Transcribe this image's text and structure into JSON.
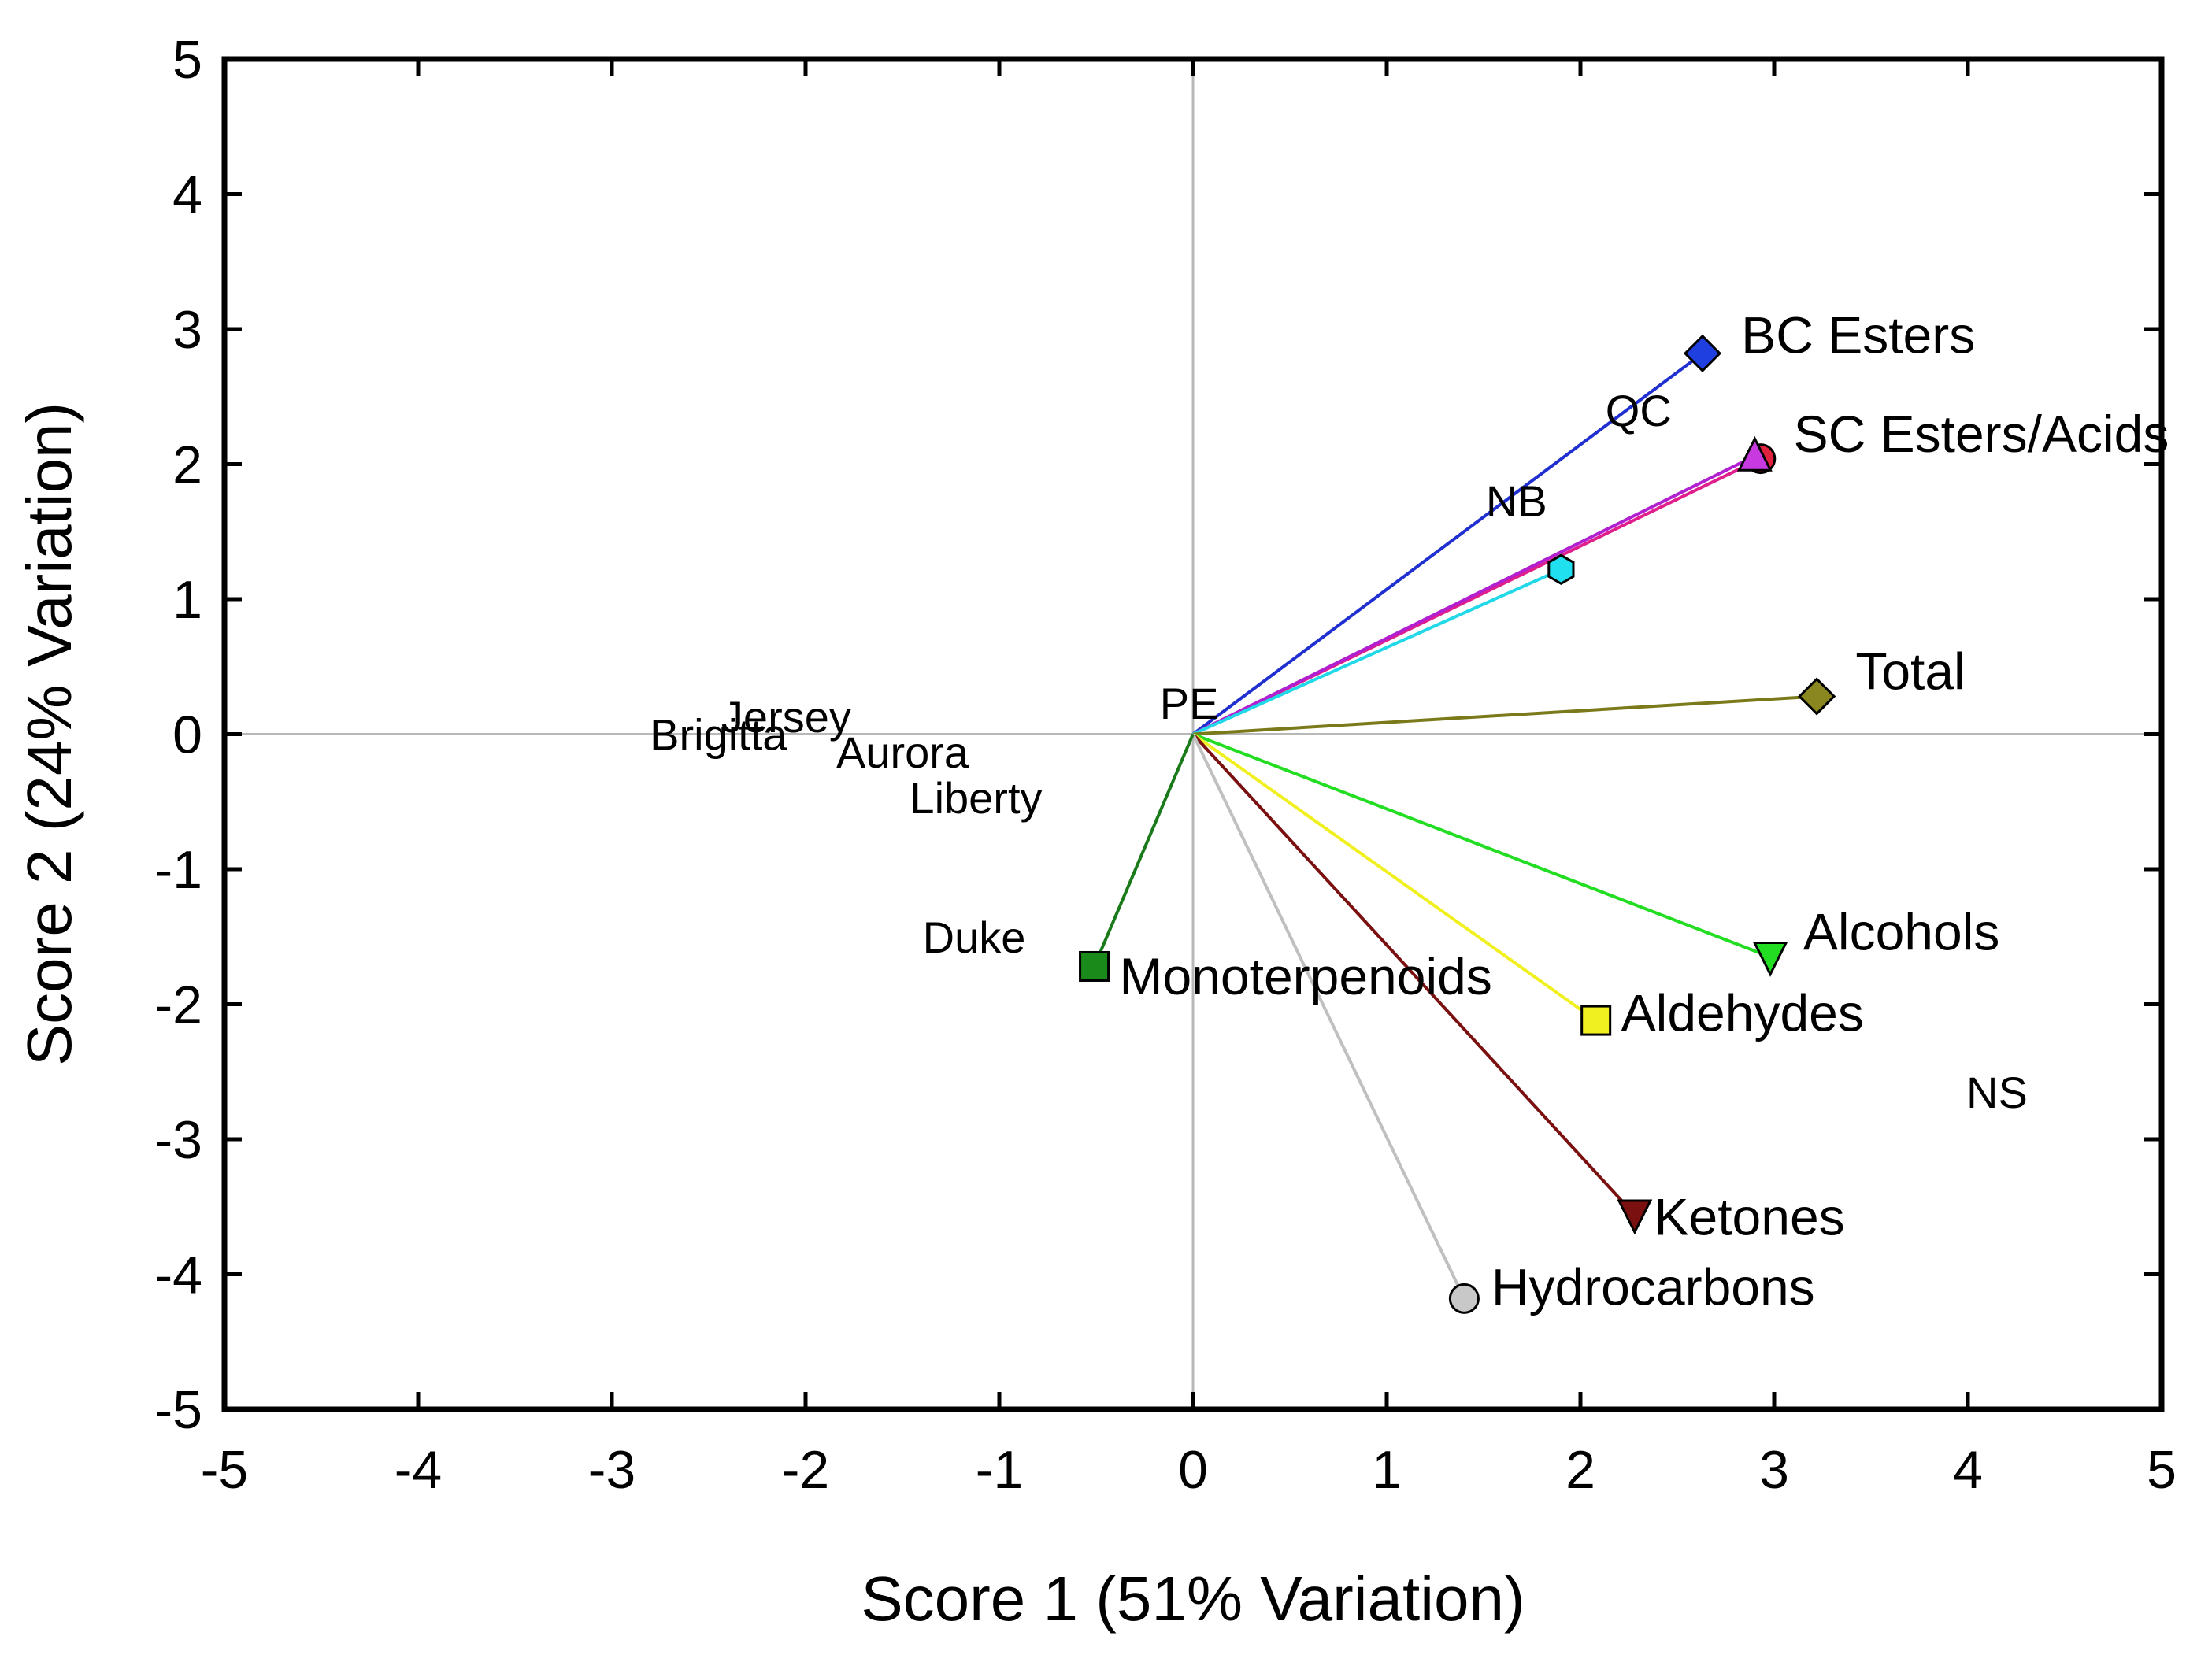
{
  "chart_data": {
    "type": "scatter",
    "subtype": "biplot",
    "title": "",
    "xlabel": "Score 1 (51% Variation)",
    "ylabel": "Score 2 (24% Variation)",
    "xlim": [
      -5,
      5
    ],
    "ylim": [
      -5,
      5
    ],
    "xticks": [
      "-5",
      "-4",
      "-3",
      "-2",
      "-1",
      "0",
      "1",
      "2",
      "3",
      "4",
      "5"
    ],
    "yticks": [
      "-5",
      "-4",
      "-3",
      "-2",
      "-1",
      "0",
      "1",
      "2",
      "3",
      "4",
      "5"
    ],
    "zero_lines": true,
    "vectors": [
      {
        "name": "BC Esters",
        "label": "BC Esters",
        "x": 2.63,
        "y": 2.82,
        "color": "#1f2fd0",
        "marker": "diamond",
        "marker_color": "#1f3fe0",
        "label_dx": 0.2,
        "label_dy": 0.13
      },
      {
        "name": "SC Esters/Acids",
        "label": "SC Esters/Acids",
        "x": 2.93,
        "y": 2.04,
        "color": "#e01e8c",
        "marker": "circle",
        "marker_color": "#e0223e",
        "label_dx": 0.17,
        "label_dy": 0.18
      },
      {
        "name": "SC Esters/Acids (triangle)",
        "label": "",
        "x": 2.9,
        "y": 2.06,
        "color": "#b020d0",
        "marker": "triangle-up",
        "marker_color": "#c83ae0",
        "label_dx": 0,
        "label_dy": 0
      },
      {
        "name": "Cyan",
        "label": "",
        "x": 1.9,
        "y": 1.22,
        "color": "#20d8e8",
        "marker": "hexagon",
        "marker_color": "#20e0f0",
        "label_dx": 0,
        "label_dy": 0
      },
      {
        "name": "Total",
        "label": "Total",
        "x": 3.22,
        "y": 0.28,
        "color": "#7a7a1a",
        "marker": "diamond",
        "marker_color": "#8a8620",
        "label_dx": 0.2,
        "label_dy": 0.18
      },
      {
        "name": "Alcohols",
        "label": "Alcohols",
        "x": 2.98,
        "y": -1.65,
        "color": "#22dd22",
        "marker": "triangle-down",
        "marker_color": "#22dd22",
        "label_dx": 0.17,
        "label_dy": 0.18
      },
      {
        "name": "Aldehydes",
        "label": "Aldehydes",
        "x": 2.08,
        "y": -2.12,
        "color": "#f0f020",
        "marker": "square",
        "marker_color": "#f0f020",
        "label_dx": 0.13,
        "label_dy": 0.05
      },
      {
        "name": "Ketones",
        "label": "Ketones",
        "x": 2.28,
        "y": -3.56,
        "color": "#7a1010",
        "marker": "triangle-down",
        "marker_color": "#7a1010",
        "label_dx": 0.1,
        "label_dy": -0.02
      },
      {
        "name": "Hydrocarbons",
        "label": "Hydrocarbons",
        "x": 1.4,
        "y": -4.18,
        "color": "#c0c0c0",
        "marker": "circle",
        "marker_color": "#c8c8c8",
        "label_dx": 0.14,
        "label_dy": 0.08
      },
      {
        "name": "Monoterpenoids",
        "label": "Monoterpenoids",
        "x": -0.51,
        "y": -1.72,
        "color": "#1a7a1a",
        "marker": "square",
        "marker_color": "#1a8a1a",
        "label_dx": 0.13,
        "label_dy": -0.08
      }
    ],
    "cultivars": [
      {
        "label": "QC",
        "x": 2.3,
        "y": 2.4
      },
      {
        "label": "NB",
        "x": 1.67,
        "y": 1.73
      },
      {
        "label": "PE",
        "x": -0.02,
        "y": 0.23
      },
      {
        "label": "Jersey",
        "x": -2.1,
        "y": 0.13
      },
      {
        "label": "Brigitta",
        "x": -2.45,
        "y": 0.0
      },
      {
        "label": "Aurora",
        "x": -1.5,
        "y": -0.13
      },
      {
        "label": "Liberty",
        "x": -1.12,
        "y": -0.47
      },
      {
        "label": "Duke",
        "x": -1.13,
        "y": -1.5
      },
      {
        "label": "NS",
        "x": 4.15,
        "y": -2.65
      }
    ]
  }
}
